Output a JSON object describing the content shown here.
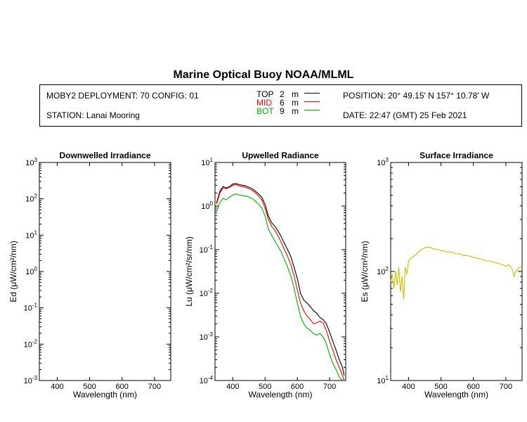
{
  "header": {
    "title": "Marine Optical Buoy NOAA/MLML",
    "deployment": "MOBY2 DEPLOYMENT: 70 CONFIG: 01",
    "station": "STATION: Lanai Mooring",
    "position": "POSITION: 20° 49.15' N   157° 10.78' W",
    "date": "DATE: 22:47 (GMT) 25 Feb 2021",
    "depth_legend": [
      {
        "label": "TOP",
        "depth": "2",
        "unit": "m",
        "color": "#000000"
      },
      {
        "label": "MID",
        "depth": "6",
        "unit": "m",
        "color": "#ff0000"
      },
      {
        "label": "BOT",
        "depth": "9",
        "unit": "m",
        "color": "#00b000"
      }
    ]
  },
  "chart_data": [
    {
      "type": "line",
      "title": "Downwelled Irradiance",
      "xlabel": "Wavelength (nm)",
      "ylabel": "Ed  (μW/cm²/nm)",
      "xlim": [
        345,
        750
      ],
      "xticks": [
        400,
        500,
        600,
        700
      ],
      "yscale": "log",
      "ylim": [
        0.001,
        1000
      ],
      "yticks": [
        {
          "base": "10",
          "exp": "-3"
        },
        {
          "base": "10",
          "exp": "-2"
        },
        {
          "base": "10",
          "exp": "-1"
        },
        {
          "base": "10",
          "exp": "0"
        },
        {
          "base": "10",
          "exp": "1"
        },
        {
          "base": "10",
          "exp": "2"
        },
        {
          "base": "10",
          "exp": "3"
        }
      ],
      "grid": false,
      "series": []
    },
    {
      "type": "line",
      "title": "Upwelled Radiance",
      "xlabel": "Wavelength (nm)",
      "ylabel": "Lu  (μW/cm²/sr/nm)",
      "xlim": [
        345,
        750
      ],
      "xticks": [
        400,
        500,
        600,
        700
      ],
      "yscale": "log",
      "ylim": [
        0.0001,
        10
      ],
      "yticks": [
        {
          "base": "10",
          "exp": "-4"
        },
        {
          "base": "10",
          "exp": "-3"
        },
        {
          "base": "10",
          "exp": "-2"
        },
        {
          "base": "10",
          "exp": "-1"
        },
        {
          "base": "10",
          "exp": "0"
        },
        {
          "base": "10",
          "exp": "1"
        }
      ],
      "grid": false,
      "series": [
        {
          "name": "TOP",
          "color": "#000000",
          "x": [
            350,
            360,
            370,
            380,
            390,
            400,
            410,
            420,
            430,
            440,
            450,
            460,
            470,
            480,
            490,
            500,
            510,
            520,
            530,
            540,
            550,
            560,
            570,
            580,
            590,
            600,
            610,
            620,
            630,
            640,
            650,
            660,
            670,
            680,
            690,
            700,
            710,
            720,
            730,
            740,
            745
          ],
          "y": [
            1.2,
            2.2,
            2.8,
            2.6,
            2.8,
            3.2,
            3.3,
            3.1,
            3.0,
            2.9,
            2.7,
            2.5,
            2.2,
            1.9,
            1.6,
            1.1,
            0.6,
            0.42,
            0.35,
            0.27,
            0.2,
            0.14,
            0.1,
            0.07,
            0.04,
            0.022,
            0.01,
            0.007,
            0.006,
            0.005,
            0.004,
            0.0035,
            0.0028,
            0.0025,
            0.002,
            0.0013,
            0.0008,
            0.0005,
            0.0003,
            0.0002,
            0.00013
          ]
        },
        {
          "name": "MID",
          "color": "#ff0000",
          "x": [
            350,
            360,
            370,
            380,
            390,
            400,
            410,
            420,
            430,
            440,
            450,
            460,
            470,
            480,
            490,
            500,
            510,
            520,
            530,
            540,
            550,
            560,
            570,
            580,
            590,
            600,
            610,
            620,
            630,
            640,
            650,
            660,
            670,
            680,
            690,
            700,
            710,
            720,
            730,
            740,
            745
          ],
          "y": [
            1.1,
            2.0,
            2.6,
            2.5,
            2.7,
            3.0,
            3.1,
            2.9,
            2.8,
            2.7,
            2.5,
            2.3,
            2.0,
            1.7,
            1.4,
            0.9,
            0.5,
            0.35,
            0.28,
            0.21,
            0.15,
            0.1,
            0.07,
            0.045,
            0.025,
            0.012,
            0.006,
            0.004,
            0.003,
            0.0025,
            0.002,
            0.0021,
            0.0023,
            0.0021,
            0.0014,
            0.0008,
            0.0005,
            0.0003,
            0.0002,
            0.00013,
            0.0001
          ]
        },
        {
          "name": "BOT",
          "color": "#00b000",
          "x": [
            350,
            360,
            370,
            380,
            390,
            400,
            410,
            420,
            430,
            440,
            450,
            460,
            470,
            480,
            490,
            500,
            510,
            520,
            530,
            540,
            550,
            560,
            570,
            580,
            590,
            600,
            610,
            620,
            630,
            640,
            650,
            660,
            670,
            680,
            690,
            700,
            710,
            720,
            730,
            740
          ],
          "y": [
            0.75,
            1.2,
            1.5,
            1.4,
            1.6,
            1.8,
            1.9,
            1.8,
            1.75,
            1.7,
            1.6,
            1.5,
            1.3,
            1.1,
            0.9,
            0.6,
            0.3,
            0.22,
            0.16,
            0.12,
            0.09,
            0.06,
            0.04,
            0.025,
            0.013,
            0.006,
            0.003,
            0.002,
            0.0016,
            0.0014,
            0.0012,
            0.0011,
            0.0012,
            0.001,
            0.0007,
            0.0004,
            0.00025,
            0.00018,
            0.00012,
            0.0001
          ]
        }
      ]
    },
    {
      "type": "line",
      "title": "Surface Irradiance",
      "xlabel": "Wavelength (nm)",
      "ylabel": "Es  (μW/cm²/nm)",
      "xlim": [
        345,
        750
      ],
      "xticks": [
        400,
        500,
        600,
        700
      ],
      "yscale": "log",
      "ylim": [
        10,
        1000
      ],
      "yticks": [
        {
          "base": "10",
          "exp": "1"
        },
        {
          "base": "10",
          "exp": "2"
        },
        {
          "base": "10",
          "exp": "3"
        }
      ],
      "grid": false,
      "series": [
        {
          "name": "",
          "color": "#c8c000",
          "x": [
            345,
            350,
            355,
            360,
            365,
            370,
            375,
            380,
            385,
            390,
            395,
            400,
            410,
            420,
            430,
            440,
            450,
            460,
            470,
            480,
            490,
            500,
            510,
            520,
            530,
            540,
            550,
            560,
            570,
            580,
            590,
            600,
            610,
            620,
            630,
            640,
            650,
            660,
            670,
            680,
            690,
            700,
            710,
            720,
            725,
            730,
            740,
            750
          ],
          "y": [
            80,
            95,
            70,
            100,
            75,
            110,
            65,
            90,
            55,
            110,
            95,
            125,
            135,
            140,
            150,
            160,
            165,
            168,
            165,
            160,
            160,
            155,
            155,
            150,
            152,
            148,
            145,
            145,
            140,
            140,
            138,
            135,
            133,
            130,
            128,
            125,
            125,
            122,
            120,
            118,
            115,
            112,
            115,
            105,
            90,
            100,
            108,
            112
          ]
        }
      ]
    }
  ]
}
